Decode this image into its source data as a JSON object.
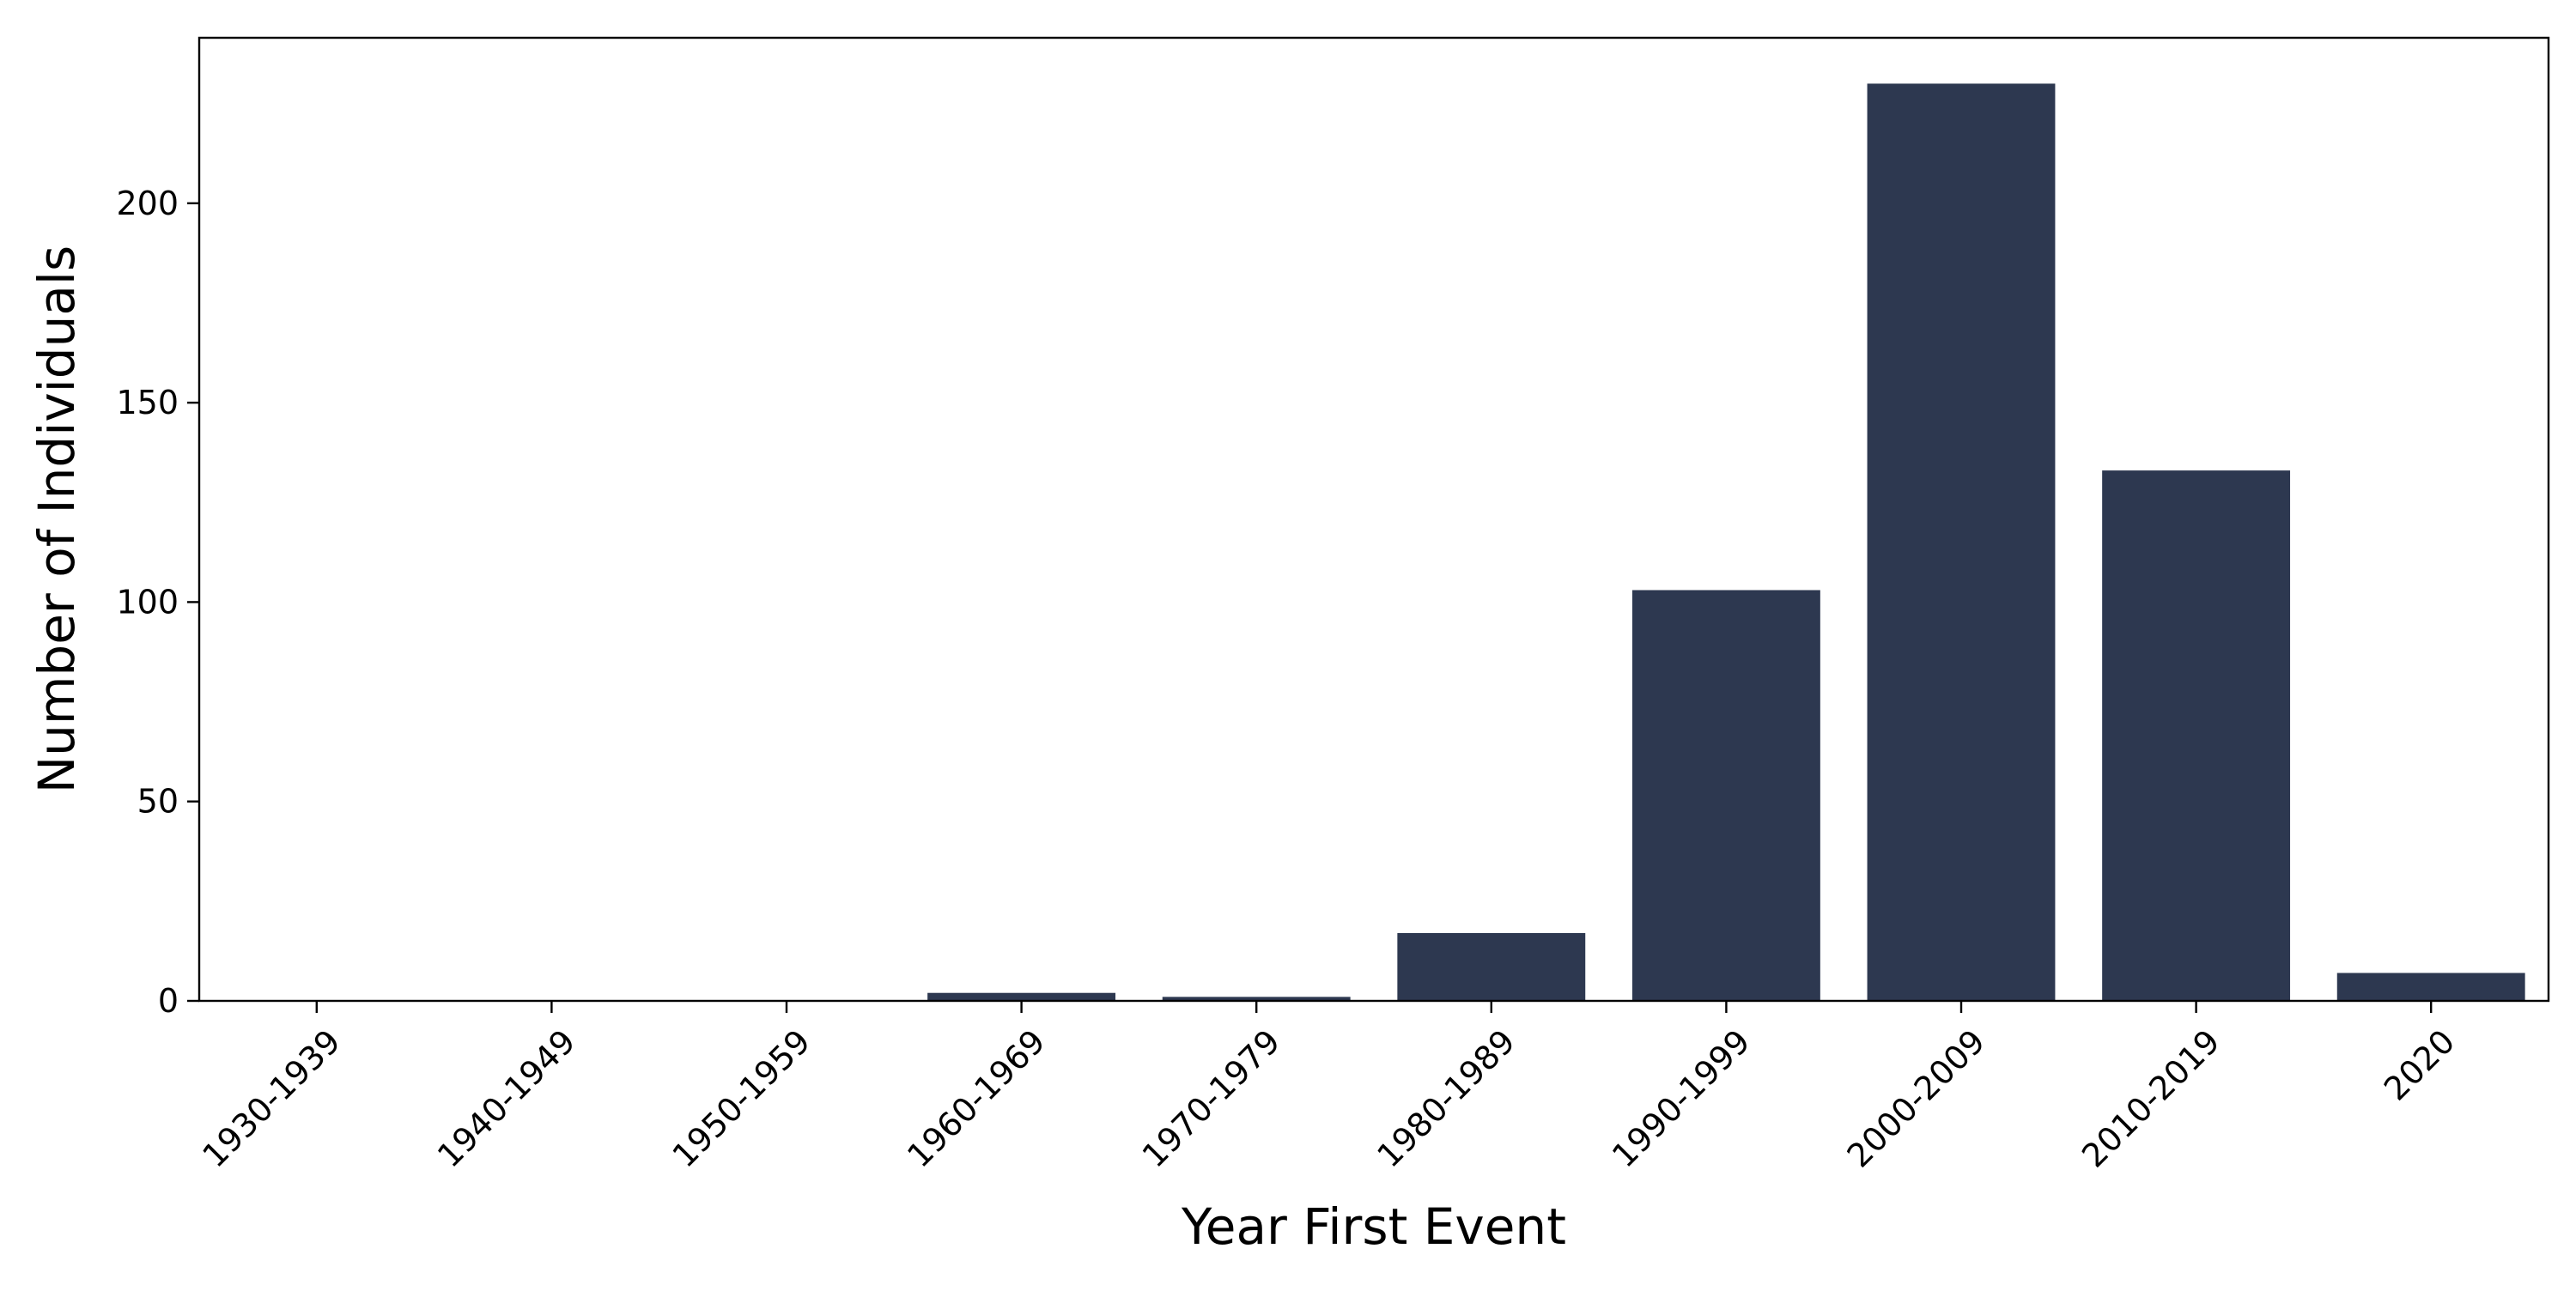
{
  "chart_data": {
    "type": "bar",
    "title": "",
    "xlabel": "Year First Event",
    "ylabel": "Number of Individuals",
    "categories": [
      "1930-1939",
      "1940-1949",
      "1950-1959",
      "1960-1969",
      "1970-1979",
      "1980-1989",
      "1990-1999",
      "2000-2009",
      "2010-2019",
      "2020"
    ],
    "values": [
      0,
      0,
      0,
      2,
      1,
      17,
      103,
      230,
      133,
      7
    ],
    "ylim": [
      0,
      241.5
    ],
    "yticks": [
      0,
      50,
      100,
      150,
      200
    ],
    "bar_color": "#2d3850",
    "grid": false,
    "legend": "none"
  }
}
